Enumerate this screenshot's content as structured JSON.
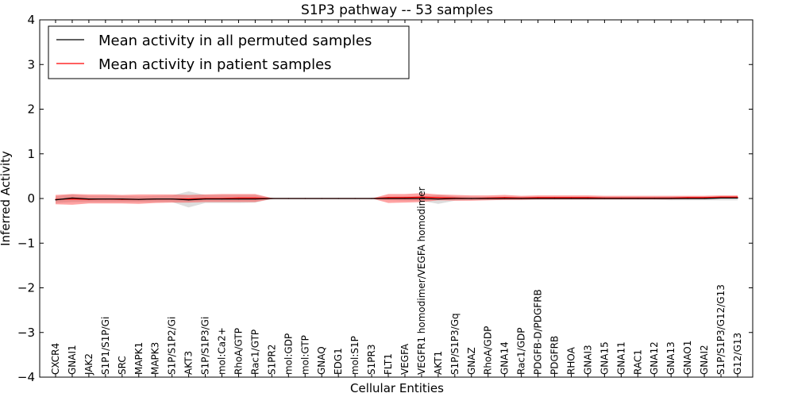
{
  "chart_data": {
    "type": "line",
    "title": "S1P3 pathway -- 53 samples",
    "xlabel": "Cellular Entities",
    "ylabel": "Inferred Activity",
    "ylim": [
      -4,
      4
    ],
    "yticks": [
      -4,
      -3,
      -2,
      -1,
      0,
      1,
      2,
      3,
      4
    ],
    "ytick_labels": [
      "−4",
      "−3",
      "−2",
      "−1",
      "0",
      "1",
      "2",
      "3",
      "4"
    ],
    "legend_position": "top-left",
    "categories": [
      "CXCR4",
      "GNAI1",
      "JAK2",
      "S1P1/S1P/Gi",
      "SRC",
      "MAPK1",
      "MAPK3",
      "S1P/S1P2/Gi",
      "AKT3",
      "S1P/S1P3/Gi",
      "mol:Ca2+",
      "RhoA/GTP",
      "Rac1/GTP",
      "S1PR2",
      "mol:GDP",
      "mol:GTP",
      "GNAQ",
      "EDG1",
      "mol:S1P",
      "S1PR3",
      "FLT1",
      "VEGFA",
      "VEGFR1 homodimer/VEGFA homodimer",
      "AKT1",
      "S1P/S1P3/Gq",
      "GNAZ",
      "RhoA/GDP",
      "GNA14",
      "Rac1/GDP",
      "PDGFB-D/PDGFRB",
      "PDGFRB",
      "RHOA",
      "GNAI3",
      "GNA15",
      "GNA11",
      "RAC1",
      "GNA12",
      "GNA13",
      "GNAO1",
      "GNAI2",
      "S1P/S1P3/G12/G13",
      "G12/G13"
    ],
    "series": [
      {
        "name": "Mean activity in all permuted samples",
        "color": "#000000",
        "values": [
          -0.03,
          0.01,
          -0.01,
          -0.01,
          -0.01,
          -0.02,
          -0.01,
          -0.01,
          -0.03,
          -0.01,
          -0.01,
          -0.01,
          -0.01,
          0.0,
          0.0,
          0.0,
          0.0,
          0.0,
          0.0,
          0.0,
          0.0,
          0.0,
          0.0,
          -0.01,
          0.0,
          0.0,
          0.0,
          0.0,
          0.0,
          0.0,
          0.0,
          0.0,
          0.0,
          0.0,
          0.0,
          0.0,
          0.0,
          0.0,
          0.0,
          0.0,
          0.01,
          0.01
        ],
        "lower": [
          -0.1,
          -0.08,
          -0.08,
          -0.08,
          -0.08,
          -0.08,
          -0.08,
          -0.08,
          -0.2,
          -0.1,
          -0.1,
          -0.1,
          -0.09,
          -0.01,
          0.0,
          0.0,
          0.0,
          0.0,
          0.0,
          -0.01,
          -0.04,
          -0.05,
          -0.05,
          -0.12,
          -0.05,
          -0.04,
          -0.03,
          -0.03,
          -0.03,
          -0.03,
          -0.03,
          -0.03,
          -0.03,
          -0.03,
          -0.03,
          -0.03,
          -0.03,
          -0.04,
          -0.04,
          -0.04,
          -0.04,
          -0.04
        ],
        "upper": [
          0.05,
          0.09,
          0.06,
          0.06,
          0.06,
          0.05,
          0.06,
          0.07,
          0.16,
          0.08,
          0.08,
          0.08,
          0.08,
          0.01,
          0.0,
          0.0,
          0.0,
          0.0,
          0.0,
          0.01,
          0.04,
          0.05,
          0.05,
          0.08,
          0.05,
          0.04,
          0.03,
          0.03,
          0.03,
          0.03,
          0.03,
          0.03,
          0.03,
          0.03,
          0.03,
          0.03,
          0.03,
          0.04,
          0.04,
          0.04,
          0.05,
          0.05
        ]
      },
      {
        "name": "Mean activity in patient samples",
        "color": "#ff0000",
        "values": [
          -0.02,
          -0.01,
          -0.02,
          -0.01,
          -0.02,
          -0.02,
          -0.01,
          -0.01,
          -0.01,
          0.0,
          0.0,
          0.01,
          0.01,
          0.0,
          0.0,
          0.0,
          0.0,
          0.0,
          0.0,
          0.0,
          0.02,
          0.02,
          0.03,
          0.02,
          0.01,
          0.0,
          0.01,
          0.02,
          0.01,
          0.02,
          0.02,
          0.02,
          0.02,
          0.01,
          0.01,
          0.01,
          0.01,
          0.01,
          0.02,
          0.02,
          0.03,
          0.03
        ],
        "lower": [
          -0.13,
          -0.14,
          -0.11,
          -0.11,
          -0.11,
          -0.12,
          -0.1,
          -0.09,
          -0.09,
          -0.08,
          -0.08,
          -0.08,
          -0.08,
          -0.01,
          0.0,
          0.0,
          0.0,
          0.0,
          0.0,
          0.0,
          -0.1,
          -0.09,
          -0.08,
          -0.04,
          -0.05,
          -0.05,
          -0.04,
          -0.03,
          -0.03,
          -0.02,
          -0.02,
          -0.02,
          -0.02,
          -0.02,
          -0.02,
          -0.02,
          -0.02,
          -0.02,
          -0.01,
          -0.01,
          0.0,
          0.0
        ],
        "upper": [
          0.08,
          0.1,
          0.09,
          0.09,
          0.08,
          0.09,
          0.09,
          0.09,
          0.08,
          0.09,
          0.1,
          0.1,
          0.1,
          0.01,
          0.0,
          0.0,
          0.0,
          0.0,
          0.0,
          0.0,
          0.1,
          0.1,
          0.12,
          0.09,
          0.08,
          0.07,
          0.07,
          0.08,
          0.06,
          0.07,
          0.07,
          0.07,
          0.07,
          0.06,
          0.06,
          0.06,
          0.06,
          0.06,
          0.06,
          0.06,
          0.07,
          0.07
        ]
      }
    ],
    "band_colors": {
      "permuted": "#bbbbbb",
      "patient": "#ff3333"
    }
  }
}
